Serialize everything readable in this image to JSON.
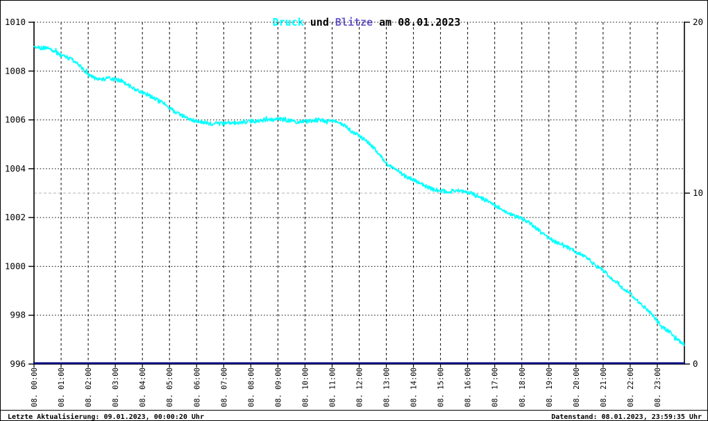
{
  "title": {
    "druck": "Druck",
    "mid": " und ",
    "blitze": "Blitze",
    "rest": " am 08.01.2023"
  },
  "footer": {
    "left": "Letzte Aktualisierung: 09.01.2023, 00:00:20 Uhr",
    "right": "Datenstand: 08.01.2023, 23:59:35 Uhr"
  },
  "colors": {
    "background": "#ffffff",
    "border": "#000000",
    "pressure_line": "#00ffff",
    "blitze_line": "#000080",
    "grid_black": "#000000",
    "grid_gray": "#c0c0c0",
    "axis": "#000000",
    "title_druck": "#00ffff",
    "title_blitze": "#6a5acd",
    "text": "#000000"
  },
  "chart_data": {
    "type": "line",
    "title": "Druck und Blitze am 08.01.2023",
    "grid": {
      "horizontal": "dotted",
      "vertical": "dashed",
      "right_axis_mid_gridline": "light-gray"
    },
    "legend_position": "none",
    "x_axis": {
      "labels": [
        "08. 00:00",
        "08. 01:00",
        "08. 02:00",
        "08. 03:00",
        "08. 04:00",
        "08. 05:00",
        "08. 06:00",
        "08. 07:00",
        "08. 08:00",
        "08. 09:00",
        "08. 10:00",
        "08. 11:00",
        "08. 12:00",
        "08. 13:00",
        "08. 14:00",
        "08. 15:00",
        "08. 16:00",
        "08. 17:00",
        "08. 18:00",
        "08. 19:00",
        "08. 20:00",
        "08. 21:00",
        "08. 22:00",
        "08. 23:00"
      ],
      "hours_span": 24,
      "label_rotation_deg": -90
    },
    "y_left": {
      "name": "Druck",
      "tick_values": [
        1010,
        1008,
        1006,
        1004,
        1002,
        1000,
        998,
        996
      ],
      "range": [
        996,
        1010
      ]
    },
    "y_right": {
      "name": "Blitze",
      "tick_values": [
        20,
        10,
        0
      ],
      "range": [
        0,
        20
      ]
    },
    "series": [
      {
        "name": "Druck",
        "axis": "left",
        "color": "#00ffff",
        "x_start_hour": 0,
        "x_step_hours": 0.25,
        "values": [
          1009.0,
          1008.95,
          1008.95,
          1008.8,
          1008.65,
          1008.55,
          1008.4,
          1008.15,
          1007.85,
          1007.7,
          1007.65,
          1007.7,
          1007.65,
          1007.6,
          1007.4,
          1007.25,
          1007.1,
          1007.0,
          1006.85,
          1006.7,
          1006.5,
          1006.3,
          1006.15,
          1006.0,
          1005.95,
          1005.9,
          1005.85,
          1005.85,
          1005.85,
          1005.9,
          1005.85,
          1005.9,
          1005.95,
          1005.95,
          1006.0,
          1006.0,
          1006.05,
          1006.0,
          1005.95,
          1005.9,
          1005.95,
          1005.95,
          1006.0,
          1005.95,
          1005.95,
          1005.9,
          1005.75,
          1005.5,
          1005.35,
          1005.15,
          1004.9,
          1004.6,
          1004.2,
          1004.05,
          1003.85,
          1003.65,
          1003.55,
          1003.4,
          1003.25,
          1003.15,
          1003.1,
          1003.05,
          1003.1,
          1003.1,
          1003.05,
          1002.95,
          1002.8,
          1002.65,
          1002.5,
          1002.35,
          1002.2,
          1002.05,
          1001.95,
          1001.8,
          1001.6,
          1001.35,
          1001.15,
          1001.0,
          1000.9,
          1000.75,
          1000.6,
          1000.45,
          1000.25,
          1000.0,
          999.85,
          999.55,
          999.35,
          999.1,
          998.9,
          998.6,
          998.35,
          998.1,
          997.75,
          997.45,
          997.3,
          997.0,
          996.8
        ],
        "noise_amplitude_hpa": 0.08
      },
      {
        "name": "Blitze",
        "axis": "right",
        "color": "#000080",
        "constant_value": 0
      }
    ]
  }
}
